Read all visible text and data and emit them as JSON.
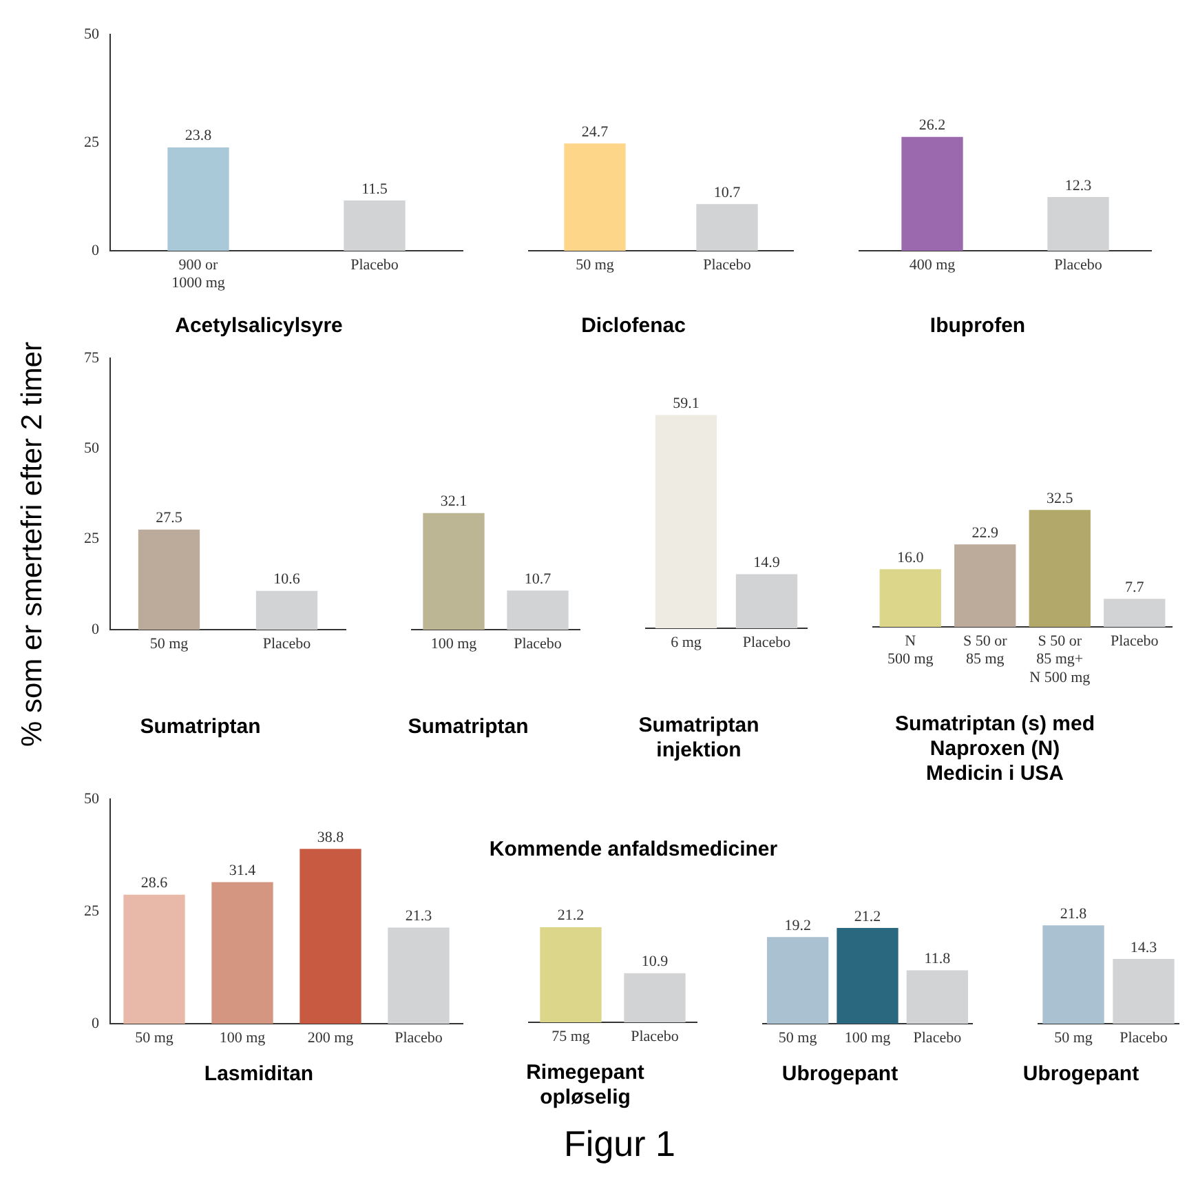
{
  "chart_data": [
    {
      "type": "bar",
      "title": "Acetylsalicylsyre",
      "categories": [
        "900 or\n1000 mg",
        "Placebo"
      ],
      "values": [
        23.8,
        11.5
      ],
      "colors": [
        "#a9c9d8",
        "#d2d3d5"
      ],
      "value_labels": [
        "23.8",
        "11.5"
      ],
      "ylim": [
        0,
        50
      ],
      "yticks": [
        0,
        25,
        50
      ],
      "grid": false,
      "legend": false
    },
    {
      "type": "bar",
      "title": "Diclofenac",
      "categories": [
        "50 mg",
        "Placebo"
      ],
      "values": [
        24.7,
        10.7
      ],
      "colors": [
        "#fdd68a",
        "#d2d3d5"
      ],
      "value_labels": [
        "24.7",
        "10.7"
      ],
      "ylim": [
        0,
        50
      ],
      "yticks": [
        0,
        25,
        50
      ],
      "tick_labels": "x",
      "grid": false,
      "legend": false
    },
    {
      "type": "bar",
      "title": "Ibuprofen",
      "categories": [
        "400 mg",
        "Placebo"
      ],
      "values": [
        26.2,
        12.3
      ],
      "colors": [
        "#9b6aae",
        "#d2d3d5"
      ],
      "value_labels": [
        "26.2",
        "12.3"
      ],
      "ylim": [
        0,
        50
      ],
      "yticks": [
        0,
        25,
        50
      ],
      "tick_labels": "x",
      "grid": false,
      "legend": false
    },
    {
      "type": "bar",
      "title": "Sumatriptan",
      "ylabel": "% som er smertefri efter 2 timer",
      "categories": [
        "50 mg",
        "Placebo"
      ],
      "values": [
        27.5,
        10.6
      ],
      "colors": [
        "#bcaa9a",
        "#d2d3d5"
      ],
      "value_labels": [
        "27.5",
        "10.6"
      ],
      "ylim": [
        0,
        75
      ],
      "yticks": [
        0,
        25,
        50,
        75
      ],
      "grid": false,
      "legend": false
    },
    {
      "type": "bar",
      "title": "Sumatriptan",
      "categories": [
        "100 mg",
        "Placebo"
      ],
      "values": [
        32.1,
        10.7
      ],
      "colors": [
        "#bcb694",
        "#d2d3d5"
      ],
      "value_labels": [
        "32.1",
        "10.7"
      ],
      "ylim": [
        0,
        75
      ],
      "yticks": [
        0,
        25,
        50,
        75
      ],
      "tick_labels": "x",
      "grid": false,
      "legend": false
    },
    {
      "type": "bar",
      "title": "Sumatriptan\ninjektion",
      "categories": [
        "6 mg",
        "Placebo"
      ],
      "values": [
        59.1,
        14.9
      ],
      "colors": [
        "#eeebe2",
        "#d2d3d5"
      ],
      "value_labels": [
        "59.1",
        "14.9"
      ],
      "ylim": [
        0,
        75
      ],
      "yticks": [
        0,
        25,
        50,
        75
      ],
      "tick_labels": "x",
      "grid": false,
      "legend": false
    },
    {
      "type": "bar",
      "title": "Sumatriptan (s) med\nNaproxen (N)\nMedicin i USA",
      "categories": [
        "N\n500 mg",
        "S 50 or\n85 mg",
        "S 50 or\n85 mg+\nN 500 mg",
        "Placebo"
      ],
      "values": [
        16.0,
        22.9,
        32.5,
        7.7
      ],
      "colors": [
        "#dcd68a",
        "#bcaa9a",
        "#b1a86a",
        "#d2d3d5"
      ],
      "value_labels": [
        "16.0",
        "22.9",
        "32.5",
        "7.7"
      ],
      "ylim": [
        0,
        75
      ],
      "yticks": [
        0,
        25,
        50,
        75
      ],
      "tick_labels": "x",
      "grid": false,
      "legend": false
    },
    {
      "type": "other",
      "title": "Kommende anfaldsmediciner"
    },
    {
      "type": "bar",
      "title": "Lasmiditan",
      "categories": [
        "50 mg",
        "100 mg",
        "200 mg",
        "Placebo"
      ],
      "values": [
        28.6,
        31.4,
        38.8,
        21.3
      ],
      "colors": [
        "#e8b9a8",
        "#d59681",
        "#c75a40",
        "#d2d3d5"
      ],
      "value_labels": [
        "28.6",
        "31.4",
        "38.8",
        "21.3"
      ],
      "ylim": [
        0,
        50
      ],
      "yticks": [
        0,
        25,
        50
      ],
      "grid": false,
      "legend": false
    },
    {
      "type": "bar",
      "title": "Rimegepant\nopløselig",
      "categories": [
        "75 mg",
        "Placebo"
      ],
      "values": [
        21.2,
        10.9
      ],
      "colors": [
        "#dcd68a",
        "#d2d3d5"
      ],
      "value_labels": [
        "21.2",
        "10.9"
      ],
      "ylim": [
        0,
        50
      ],
      "yticks": [
        0,
        25,
        50
      ],
      "tick_labels": "x",
      "grid": false,
      "legend": false
    },
    {
      "type": "bar",
      "title": "Ubrogepant",
      "categories": [
        "50 mg",
        "100 mg",
        "Placebo"
      ],
      "values": [
        19.2,
        21.2,
        11.8
      ],
      "colors": [
        "#a9c1d1",
        "#2a6880",
        "#d2d3d5"
      ],
      "value_labels": [
        "19.2",
        "21.2",
        "11.8"
      ],
      "ylim": [
        0,
        50
      ],
      "yticks": [
        0,
        25,
        50
      ],
      "tick_labels": "x",
      "grid": false,
      "legend": false
    },
    {
      "type": "bar",
      "title": "Ubrogepant",
      "categories": [
        "50 mg",
        "Placebo"
      ],
      "values": [
        21.8,
        14.3
      ],
      "colors": [
        "#a9c1d1",
        "#d2d3d5"
      ],
      "value_labels": [
        "21.8",
        "14.3"
      ],
      "ylim": [
        0,
        50
      ],
      "yticks": [
        0,
        25,
        50
      ],
      "tick_labels": "x",
      "grid": false,
      "legend": false
    },
    {
      "type": "other",
      "title": "Figur 1"
    }
  ]
}
